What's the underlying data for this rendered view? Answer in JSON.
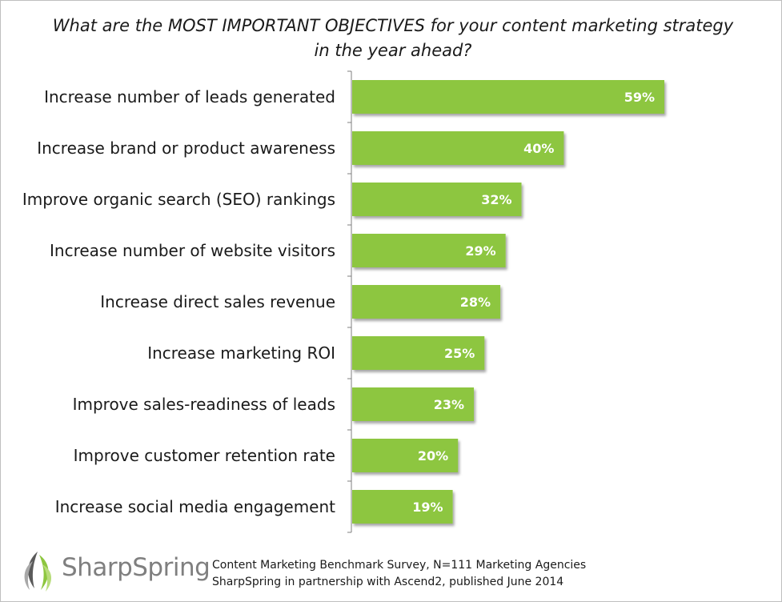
{
  "chart_data": {
    "type": "bar",
    "orientation": "horizontal",
    "title": "What are the MOST IMPORTANT OBJECTIVES for your content marketing strategy in the year ahead?",
    "categories": [
      "Increase number of leads generated",
      "Increase brand or product awareness",
      "Improve organic search (SEO) rankings",
      "Increase number of website visitors",
      "Increase direct sales revenue",
      "Increase marketing ROI",
      "Improve sales-readiness of leads",
      "Improve customer retention rate",
      "Increase social media engagement"
    ],
    "values": [
      59,
      40,
      32,
      29,
      28,
      25,
      23,
      20,
      19
    ],
    "value_labels": [
      "59%",
      "40%",
      "32%",
      "29%",
      "28%",
      "25%",
      "23%",
      "20%",
      "19%"
    ],
    "xlim": [
      0,
      100
    ],
    "grid": false,
    "bar_color": "#8dc63f"
  },
  "footer": {
    "logo_text": "SharpSpring",
    "source_line1": "Content Marketing Benchmark Survey, N=111 Marketing Agencies",
    "source_line2": "SharpSpring in partnership with Ascend2, published June 2014"
  },
  "colors": {
    "logo_green": "#8dc63f",
    "logo_gray": "#7f7f7f"
  }
}
